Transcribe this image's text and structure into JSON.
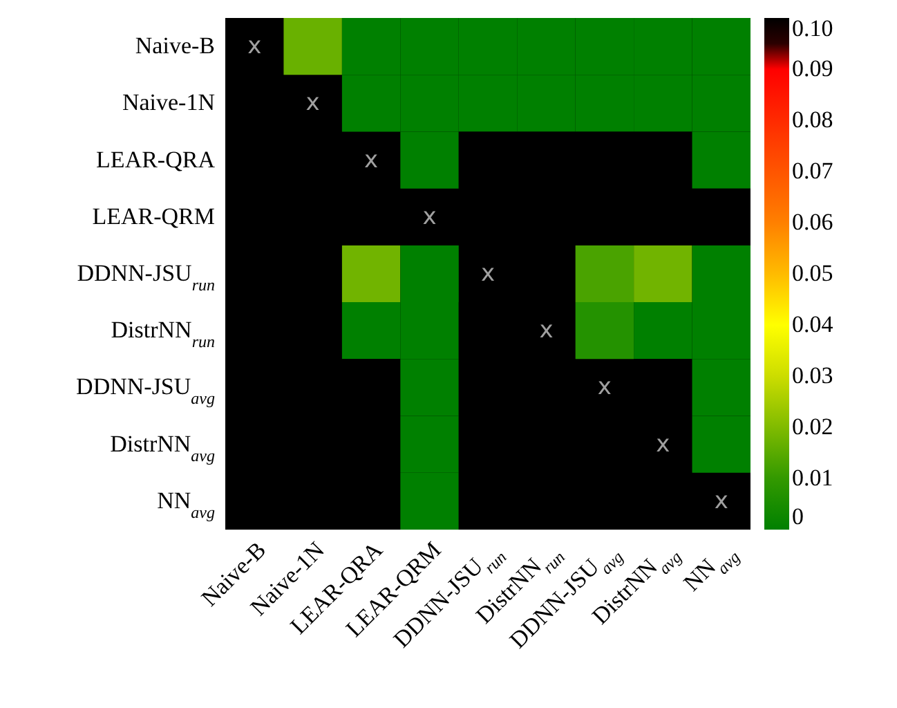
{
  "chart_data": {
    "type": "heatmap",
    "categories": [
      "Naive-B",
      "Naive-1N",
      "LEAR-QRA",
      "LEAR-QRM",
      "DDNN-JSU$_{run}$",
      "DistrNN$_{run}$",
      "DDNN-JSU$_{avg}$",
      "DistrNN$_{avg}$",
      "NN$_{avg}$"
    ],
    "y_categories": [
      "Naive-B",
      "Naive-1N",
      "LEAR-QRA",
      "LEAR-QRM",
      "DDNN-JSU$_{run}$",
      "DistrNN$_{run}$",
      "DDNN-JSU$_{avg}$",
      "DistrNN$_{avg}$",
      "NN$_{avg}$"
    ],
    "cells": [
      [
        null,
        0.017,
        0,
        0,
        0,
        0,
        0,
        0,
        0
      ],
      [
        0.1,
        null,
        0,
        0,
        0,
        0,
        0,
        0,
        0
      ],
      [
        0.1,
        0.1,
        null,
        0,
        0.1,
        0.1,
        0.1,
        0.1,
        0
      ],
      [
        0.1,
        0.1,
        0.1,
        null,
        0.1,
        0.1,
        0.1,
        0.1,
        0.1
      ],
      [
        0.1,
        0.1,
        0.018,
        0,
        null,
        0.1,
        0.013,
        0.018,
        0
      ],
      [
        0.1,
        0.1,
        0,
        0,
        0.1,
        null,
        0.007,
        0,
        0
      ],
      [
        0.1,
        0.1,
        0.1,
        0,
        0.1,
        0.1,
        null,
        0.1,
        0
      ],
      [
        0.1,
        0.1,
        0.1,
        0,
        0.1,
        0.1,
        0.1,
        null,
        0
      ],
      [
        0.1,
        0.1,
        0.1,
        0,
        0.1,
        0.1,
        0.1,
        0.1,
        null
      ]
    ],
    "cell_labels": [
      [
        "x",
        null,
        null,
        null,
        null,
        null,
        null,
        null,
        null
      ],
      [
        null,
        "x",
        null,
        null,
        null,
        null,
        null,
        null,
        null
      ],
      [
        null,
        null,
        "x",
        null,
        null,
        null,
        null,
        null,
        null
      ],
      [
        null,
        null,
        null,
        "x",
        null,
        null,
        null,
        null,
        null
      ],
      [
        null,
        null,
        null,
        null,
        "x",
        null,
        null,
        null,
        null
      ],
      [
        null,
        null,
        null,
        null,
        null,
        "x",
        null,
        null,
        null
      ],
      [
        null,
        null,
        null,
        null,
        null,
        null,
        "x",
        null,
        null
      ],
      [
        null,
        null,
        null,
        null,
        null,
        null,
        null,
        "x",
        null
      ],
      [
        null,
        null,
        null,
        null,
        null,
        null,
        null,
        null,
        "x"
      ]
    ],
    "clim": [
      0,
      0.1
    ],
    "cticks": [
      0,
      0.01,
      0.02,
      0.03,
      0.04,
      0.05,
      0.06,
      0.07,
      0.08,
      0.09,
      {
        "value": 0.1,
        "label": "0.10"
      }
    ]
  }
}
